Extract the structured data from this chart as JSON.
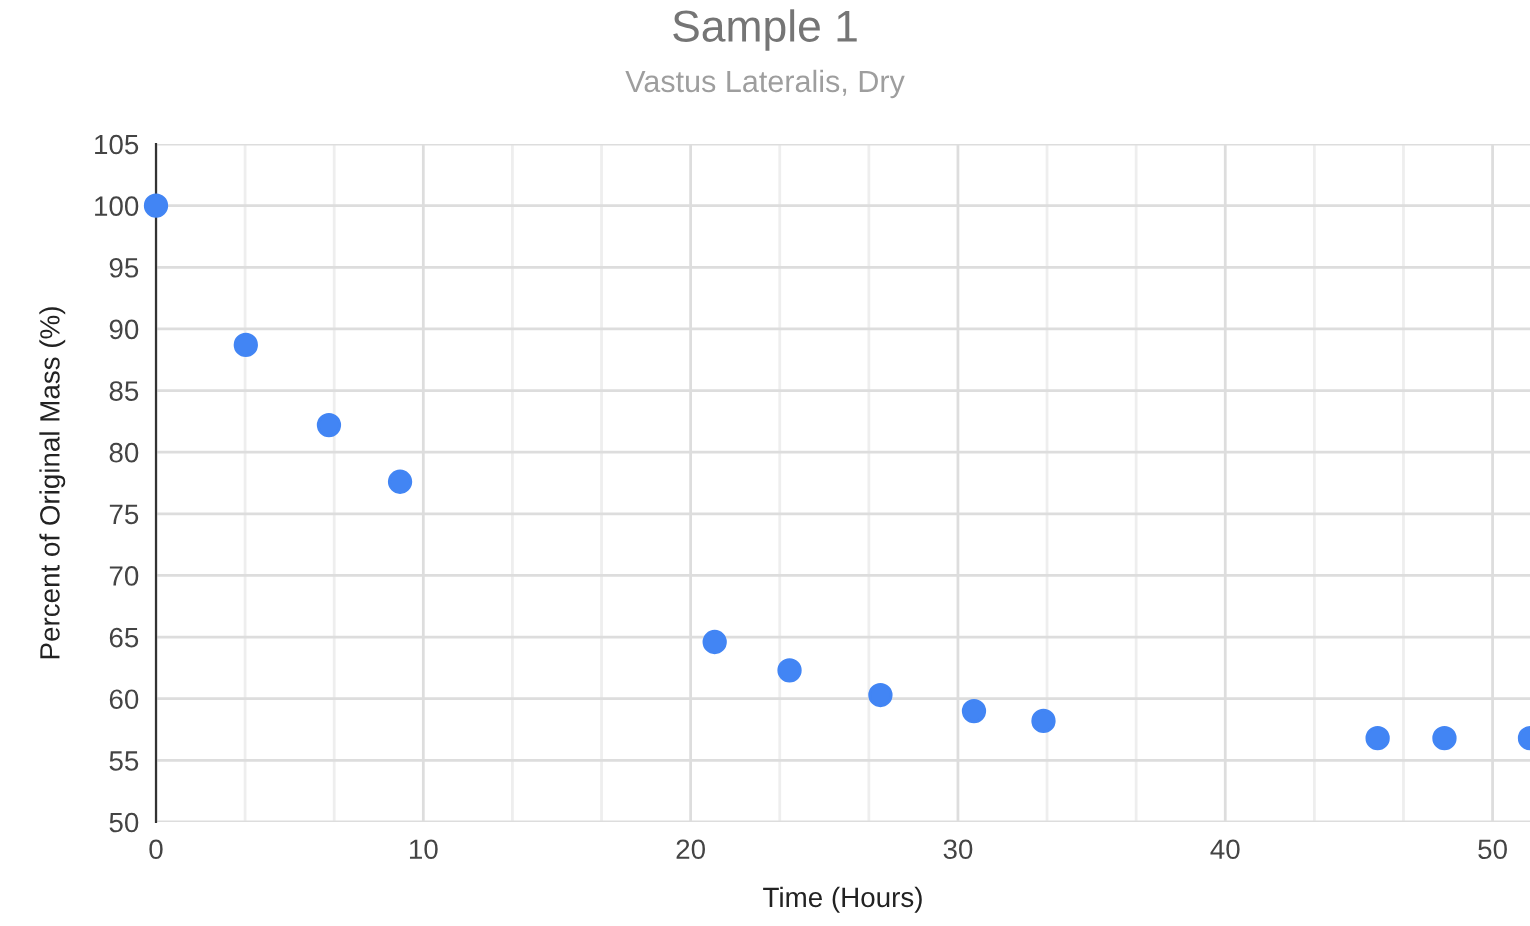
{
  "chart_data": {
    "type": "scatter",
    "title": "Sample 1",
    "subtitle": "Vastus Lateralis, Dry",
    "xlabel": "Time (Hours)",
    "ylabel": "Percent of Original Mass (%)",
    "series": [
      {
        "color": "#4285f4",
        "x": [
          0,
          3.36,
          6.47,
          9.13,
          20.9,
          23.7,
          27.1,
          30.6,
          33.2,
          45.7,
          48.2,
          51.4
        ],
        "values": [
          100,
          88.7,
          82.2,
          77.6,
          64.6,
          62.3,
          60.3,
          59.0,
          58.2,
          56.8,
          56.8,
          56.8
        ]
      }
    ],
    "xlim": [
      0,
      51.4
    ],
    "ylim": [
      50,
      105
    ],
    "xticks": [
      0,
      {
        "value": 3.333,
        "label": null
      },
      {
        "value": 6.667,
        "label": null
      },
      10,
      {
        "value": 13.333,
        "label": null
      },
      {
        "value": 16.667,
        "label": null
      },
      20,
      {
        "value": 23.333,
        "label": null
      },
      {
        "value": 26.667,
        "label": null
      },
      30,
      {
        "value": 33.333,
        "label": null
      },
      {
        "value": 36.667,
        "label": null
      },
      40,
      {
        "value": 43.333,
        "label": null
      },
      {
        "value": 46.667,
        "label": null
      },
      50
    ],
    "yticks": [
      50,
      55,
      60,
      65,
      70,
      75,
      80,
      85,
      90,
      95,
      100,
      105
    ],
    "grid": true,
    "marker": "circle",
    "legend": false
  }
}
